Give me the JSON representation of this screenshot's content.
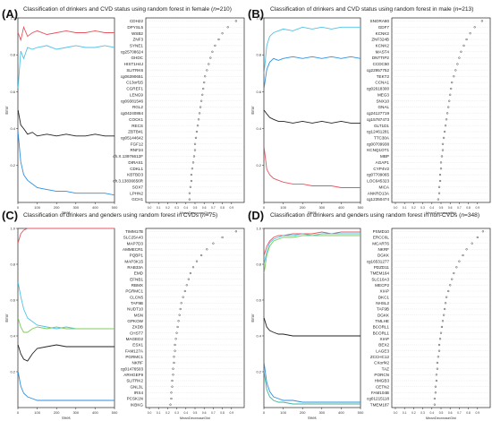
{
  "figure": {
    "panels": [
      {
        "letter": "(A)",
        "title_pre": "Classification of drinkers and CVD status  using random forest in female (",
        "n": "n",
        "title_post": "=210)"
      },
      {
        "letter": "(B)",
        "title_pre": "Classification of drinkers and CVD status  using random forest in male (",
        "n": "n",
        "title_post": "=213)"
      },
      {
        "letter": "(C)",
        "title_pre": "Classification of drinkers and genders using random forest in CVDs (",
        "n": "n",
        "title_post": "=75)"
      },
      {
        "letter": "(D)",
        "title_pre": "Classification of drinkers and genders using random forest in non-CVDs (",
        "n": "n",
        "title_post": "=348)"
      }
    ]
  },
  "chart_data": [
    {
      "type": "line",
      "panel": "A",
      "xlabel": "trees",
      "ylabel": "Error",
      "xlim": [
        0,
        500
      ],
      "ylim": [
        0,
        1
      ],
      "x_ticks": [
        "0",
        "100",
        "200",
        "300",
        "400",
        "500"
      ],
      "y_ticks": [
        "0.2",
        "0.4",
        "0.6",
        "0.8",
        "1.0"
      ],
      "series": [
        {
          "color": "#e8555e",
          "x": [
            1,
            15,
            30,
            50,
            75,
            100,
            150,
            200,
            250,
            300,
            350,
            400,
            450,
            500
          ],
          "y": [
            0.92,
            0.88,
            0.95,
            0.9,
            0.92,
            0.93,
            0.91,
            0.92,
            0.93,
            0.92,
            0.92,
            0.93,
            0.92,
            0.92
          ]
        },
        {
          "color": "#4fc3e8",
          "x": [
            1,
            15,
            30,
            50,
            75,
            100,
            150,
            200,
            250,
            300,
            350,
            400,
            450,
            500
          ],
          "y": [
            0.62,
            0.82,
            0.78,
            0.84,
            0.83,
            0.84,
            0.85,
            0.83,
            0.84,
            0.85,
            0.84,
            0.84,
            0.85,
            0.84
          ]
        },
        {
          "color": "#222222",
          "x": [
            1,
            15,
            30,
            50,
            75,
            100,
            150,
            200,
            250,
            300,
            350,
            400,
            450,
            500
          ],
          "y": [
            0.5,
            0.42,
            0.4,
            0.37,
            0.38,
            0.36,
            0.37,
            0.36,
            0.37,
            0.36,
            0.36,
            0.37,
            0.36,
            0.36
          ]
        },
        {
          "color": "#2f8fe0",
          "x": [
            1,
            15,
            30,
            50,
            75,
            100,
            150,
            200,
            250,
            300,
            350,
            400,
            450,
            500
          ],
          "y": [
            0.38,
            0.22,
            0.15,
            0.12,
            0.1,
            0.08,
            0.07,
            0.06,
            0.06,
            0.05,
            0.05,
            0.05,
            0.05,
            0.04
          ]
        }
      ]
    },
    {
      "type": "dotchart",
      "panel": "A",
      "xlabel": "MeanDecreaseGini",
      "xlim": [
        0,
        1
      ],
      "x_ticks": [
        "0.0",
        "0.1",
        "0.2",
        "0.3",
        "0.4",
        "0.5",
        "0.6",
        "0.7",
        "0.8",
        "0.9"
      ],
      "labels": [
        "CDH22",
        "DPYSL5",
        "WSB2",
        "ZNF3",
        "SYNE1",
        "cg25708624",
        "GHDC",
        "HIST1H4J",
        "SLITRK6",
        "cg06390651",
        "C13orf15",
        "CGREF1",
        "LENG9",
        "cg09381546",
        "RGL2",
        "cg04240864",
        "COCK1",
        "RECS",
        "ZBTB41",
        "cg05144642",
        "FGF12",
        "RNF24",
        "ch.X.13976612F",
        "DIRAS1",
        "CDKL1",
        "KBTBD3",
        "ch.3.13836656R",
        "SOX7",
        "LPHN2",
        "GCH1"
      ],
      "values": [
        0.95,
        0.86,
        0.8,
        0.76,
        0.72,
        0.69,
        0.67,
        0.65,
        0.63,
        0.61,
        0.6,
        0.59,
        0.58,
        0.57,
        0.56,
        0.55,
        0.54,
        0.53,
        0.52,
        0.51,
        0.5,
        0.5,
        0.49,
        0.48,
        0.47,
        0.46,
        0.46,
        0.45,
        0.44,
        0.44
      ]
    },
    {
      "type": "line",
      "panel": "B",
      "xlabel": "trees",
      "ylabel": "Error",
      "xlim": [
        0,
        500
      ],
      "ylim": [
        0,
        1
      ],
      "x_ticks": [
        "0",
        "100",
        "200",
        "300",
        "400",
        "500"
      ],
      "y_ticks": [
        "0.2",
        "0.4",
        "0.6",
        "0.8",
        "1.0"
      ],
      "series": [
        {
          "color": "#4fc3e8",
          "x": [
            1,
            15,
            30,
            50,
            75,
            100,
            150,
            200,
            250,
            300,
            350,
            400,
            450,
            500
          ],
          "y": [
            0.7,
            0.85,
            0.9,
            0.92,
            0.93,
            0.94,
            0.93,
            0.95,
            0.94,
            0.95,
            0.94,
            0.95,
            0.95,
            0.95
          ]
        },
        {
          "color": "#2f8fe0",
          "x": [
            1,
            15,
            30,
            50,
            75,
            100,
            150,
            200,
            250,
            300,
            350,
            400,
            450,
            500
          ],
          "y": [
            0.62,
            0.72,
            0.76,
            0.78,
            0.77,
            0.78,
            0.79,
            0.78,
            0.79,
            0.78,
            0.79,
            0.78,
            0.79,
            0.78
          ]
        },
        {
          "color": "#222222",
          "x": [
            1,
            15,
            30,
            50,
            75,
            100,
            150,
            200,
            250,
            300,
            350,
            400,
            450,
            500
          ],
          "y": [
            0.5,
            0.48,
            0.46,
            0.45,
            0.44,
            0.44,
            0.43,
            0.44,
            0.43,
            0.44,
            0.43,
            0.44,
            0.43,
            0.43
          ]
        },
        {
          "color": "#e8555e",
          "x": [
            1,
            15,
            30,
            50,
            75,
            100,
            150,
            200,
            250,
            300,
            350,
            400,
            450,
            500
          ],
          "y": [
            0.3,
            0.18,
            0.15,
            0.13,
            0.12,
            0.11,
            0.1,
            0.1,
            0.09,
            0.09,
            0.09,
            0.08,
            0.08,
            0.08
          ]
        }
      ]
    },
    {
      "type": "dotchart",
      "panel": "B",
      "xlabel": "MeanDecreaseGini",
      "xlim": [
        0,
        1
      ],
      "x_ticks": [
        "0.0",
        "0.1",
        "0.2",
        "0.3",
        "0.4",
        "0.5",
        "0.6",
        "0.7",
        "0.8",
        "0.9"
      ],
      "labels": [
        "SNORA80",
        "GDF7",
        "KCNK2",
        "ZNF324B",
        "KCNK2",
        "MAST4",
        "DNTTIP2",
        "CCDC50",
        "cg22957752",
        "TEKT2",
        "CCNA1",
        "cg02618300",
        "MEG3",
        "SNX10",
        "GNAL",
        "cg24127719",
        "cg15787473",
        "GLT1D1",
        "cg12461281",
        "TTC30A",
        "cg00709938",
        "KCNQ1OT1",
        "MBP",
        "AGAP1",
        "CYP4V2",
        "cg07709065",
        "LOC645323",
        "MICA",
        "ANKRD13A",
        "cg12350474"
      ],
      "values": [
        0.95,
        0.87,
        0.82,
        0.78,
        0.75,
        0.72,
        0.7,
        0.68,
        0.66,
        0.64,
        0.62,
        0.61,
        0.6,
        0.59,
        0.58,
        0.57,
        0.56,
        0.55,
        0.54,
        0.53,
        0.52,
        0.52,
        0.51,
        0.5,
        0.5,
        0.49,
        0.49,
        0.48,
        0.48,
        0.47
      ]
    },
    {
      "type": "line",
      "panel": "C",
      "xlabel": "trees",
      "ylabel": "Error",
      "xlim": [
        0,
        500
      ],
      "ylim": [
        0,
        1
      ],
      "x_ticks": [
        "0",
        "100",
        "200",
        "300",
        "400",
        "500"
      ],
      "y_ticks": [
        "0.2",
        "0.4",
        "0.6",
        "0.8",
        "1.0"
      ],
      "series": [
        {
          "color": "#e8555e",
          "x": [
            1,
            15,
            30,
            50,
            75,
            100,
            150,
            200,
            250,
            300,
            350,
            400,
            450,
            500
          ],
          "y": [
            0.92,
            0.97,
            0.99,
            1.0,
            1.0,
            1.0,
            1.0,
            1.0,
            1.0,
            1.0,
            1.0,
            1.0,
            1.0,
            1.0
          ]
        },
        {
          "color": "#4fc3e8",
          "x": [
            1,
            15,
            30,
            50,
            75,
            100,
            150,
            200,
            250,
            300,
            350,
            400,
            450,
            500
          ],
          "y": [
            0.7,
            0.62,
            0.55,
            0.5,
            0.48,
            0.46,
            0.45,
            0.44,
            0.45,
            0.44,
            0.44,
            0.44,
            0.44,
            0.44
          ]
        },
        {
          "color": "#7ccd5b",
          "x": [
            1,
            15,
            30,
            50,
            75,
            100,
            150,
            200,
            250,
            300,
            350,
            400,
            450,
            500
          ],
          "y": [
            0.5,
            0.45,
            0.42,
            0.42,
            0.44,
            0.45,
            0.44,
            0.45,
            0.44,
            0.44,
            0.44,
            0.44,
            0.44,
            0.44
          ]
        },
        {
          "color": "#222222",
          "x": [
            1,
            15,
            30,
            50,
            75,
            100,
            150,
            200,
            250,
            300,
            350,
            400,
            450,
            500
          ],
          "y": [
            0.35,
            0.3,
            0.27,
            0.26,
            0.3,
            0.33,
            0.34,
            0.35,
            0.34,
            0.34,
            0.34,
            0.34,
            0.34,
            0.34
          ]
        },
        {
          "color": "#2f8fe0",
          "x": [
            1,
            15,
            30,
            50,
            75,
            100,
            150,
            200,
            250,
            300,
            350,
            400,
            450,
            500
          ],
          "y": [
            0.2,
            0.12,
            0.08,
            0.06,
            0.05,
            0.04,
            0.04,
            0.04,
            0.04,
            0.04,
            0.04,
            0.04,
            0.04,
            0.04
          ]
        }
      ]
    },
    {
      "type": "dotchart",
      "panel": "C",
      "xlabel": "MeanDecreaseGini",
      "xlim": [
        0,
        1
      ],
      "x_ticks": [
        "0.0",
        "0.1",
        "0.2",
        "0.3",
        "0.4",
        "0.5",
        "0.6",
        "0.7",
        "0.8",
        "0.9"
      ],
      "labels": [
        "TIMM17B",
        "SLC25A43",
        "MAP7D3",
        "AMMECR1",
        "PQBP1",
        "MAP3K15",
        "RAB33A",
        "EMD",
        "EFNB1",
        "RBMX",
        "PGRMC1",
        "CLCN5",
        "TAF9B",
        "NUDT10",
        "MSN",
        "GPKOW",
        "ZXDB",
        "CHST7",
        "MAGED2",
        "ESX1",
        "FAM127A",
        "PGRMC1",
        "NKRF",
        "cg01476503",
        "ARHGEF9",
        "SLITRK2",
        "GNL3L",
        "IRS4",
        "PCSK1N",
        "IKBKG"
      ],
      "values": [
        0.95,
        0.8,
        0.7,
        0.63,
        0.57,
        0.52,
        0.48,
        0.45,
        0.43,
        0.41,
        0.39,
        0.37,
        0.35,
        0.34,
        0.33,
        0.32,
        0.31,
        0.3,
        0.29,
        0.28,
        0.28,
        0.27,
        0.27,
        0.26,
        0.26,
        0.25,
        0.25,
        0.24,
        0.24,
        0.23
      ]
    },
    {
      "type": "line",
      "panel": "D",
      "xlabel": "trees",
      "ylabel": "Error",
      "xlim": [
        0,
        500
      ],
      "ylim": [
        0,
        1
      ],
      "x_ticks": [
        "0",
        "100",
        "200",
        "300",
        "400",
        "500"
      ],
      "y_ticks": [
        "0.2",
        "0.4",
        "0.6",
        "0.8",
        "1.0"
      ],
      "series": [
        {
          "color": "#e8555e",
          "x": [
            1,
            15,
            30,
            50,
            75,
            100,
            150,
            200,
            250,
            300,
            350,
            400,
            450,
            500
          ],
          "y": [
            0.85,
            0.9,
            0.93,
            0.95,
            0.96,
            0.96,
            0.97,
            0.97,
            0.97,
            0.98,
            0.97,
            0.98,
            0.98,
            0.98
          ]
        },
        {
          "color": "#4fc3e8",
          "x": [
            1,
            15,
            30,
            50,
            75,
            100,
            150,
            200,
            250,
            300,
            350,
            400,
            450,
            500
          ],
          "y": [
            0.8,
            0.87,
            0.92,
            0.94,
            0.95,
            0.96,
            0.96,
            0.97,
            0.96,
            0.97,
            0.97,
            0.97,
            0.97,
            0.97
          ]
        },
        {
          "color": "#7ccd5b",
          "x": [
            1,
            15,
            30,
            50,
            75,
            100,
            150,
            200,
            250,
            300,
            350,
            400,
            450,
            500
          ],
          "y": [
            0.75,
            0.85,
            0.9,
            0.93,
            0.94,
            0.95,
            0.95,
            0.96,
            0.96,
            0.96,
            0.96,
            0.96,
            0.96,
            0.96
          ]
        },
        {
          "color": "#222222",
          "x": [
            1,
            15,
            30,
            50,
            75,
            100,
            150,
            200,
            250,
            300,
            350,
            400,
            450,
            500
          ],
          "y": [
            0.5,
            0.45,
            0.43,
            0.42,
            0.41,
            0.41,
            0.4,
            0.4,
            0.4,
            0.4,
            0.4,
            0.4,
            0.4,
            0.4
          ]
        },
        {
          "color": "#2f8fe0",
          "x": [
            1,
            15,
            30,
            50,
            75,
            100,
            150,
            200,
            250,
            300,
            350,
            400,
            450,
            500
          ],
          "y": [
            0.25,
            0.14,
            0.09,
            0.06,
            0.05,
            0.04,
            0.04,
            0.03,
            0.03,
            0.03,
            0.03,
            0.03,
            0.03,
            0.03
          ]
        },
        {
          "color": "#3fb5a0",
          "x": [
            1,
            15,
            30,
            50,
            75,
            100,
            150,
            200,
            250,
            300,
            350,
            400,
            450,
            500
          ],
          "y": [
            0.2,
            0.1,
            0.06,
            0.04,
            0.03,
            0.03,
            0.02,
            0.02,
            0.02,
            0.02,
            0.02,
            0.02,
            0.02,
            0.02
          ]
        }
      ]
    },
    {
      "type": "dotchart",
      "panel": "D",
      "xlabel": "MeanDecreaseGini",
      "xlim": [
        0,
        1
      ],
      "x_ticks": [
        "0.0",
        "0.1",
        "0.2",
        "0.3",
        "0.4",
        "0.5",
        "0.6",
        "0.7",
        "0.8",
        "0.9"
      ],
      "labels": [
        "PSMD10",
        "ERCC6L",
        "MCART6",
        "NKRF",
        "DGKK",
        "cg16531277",
        "PDZD11",
        "TMEM164",
        "SLC10A3",
        "MECP2",
        "XIAP",
        "DKC1",
        "NHSL2",
        "TAF9B",
        "DGKK",
        "TMLHE",
        "BCORL1",
        "BCORL1",
        "XIAP",
        "BEX2",
        "LAGE3",
        "ZCCHC12",
        "CXorf42",
        "TAZ",
        "PORCN",
        "HMGB3",
        "CETN2",
        "FAM104B",
        "cg01215118",
        "TMEM187"
      ],
      "values": [
        0.96,
        0.9,
        0.84,
        0.78,
        0.74,
        0.7,
        0.67,
        0.64,
        0.62,
        0.6,
        0.58,
        0.56,
        0.55,
        0.54,
        0.53,
        0.52,
        0.51,
        0.5,
        0.49,
        0.48,
        0.48,
        0.47,
        0.46,
        0.46,
        0.45,
        0.45,
        0.44,
        0.44,
        0.43,
        0.43
      ]
    }
  ]
}
